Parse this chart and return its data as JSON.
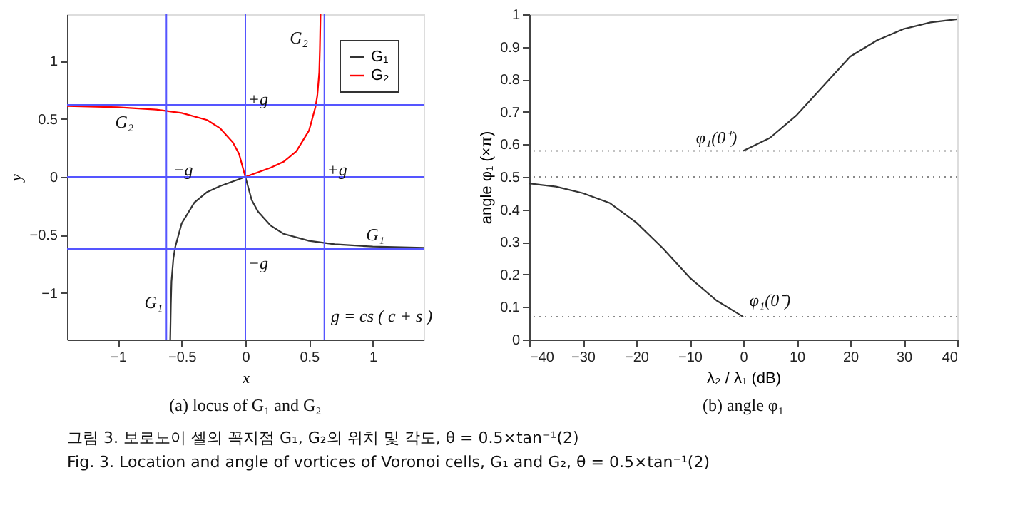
{
  "chart_data": [
    {
      "type": "line",
      "xlabel": "x",
      "ylabel": "y",
      "xlim": [
        -1.4,
        1.4
      ],
      "ylim": [
        -1.4,
        1.4
      ],
      "xticks": [
        -1,
        -0.5,
        0,
        0.5,
        1
      ],
      "yticks": [
        -1,
        -0.5,
        0,
        0.5,
        1
      ],
      "grid": false,
      "legend": "top right",
      "line_style": "solid",
      "series": [
        {
          "name": "G₁",
          "color": "#333333",
          "x": [
            -0.59,
            -0.585,
            -0.58,
            -0.565,
            -0.55,
            -0.5,
            -0.4,
            -0.3,
            -0.2,
            -0.1,
            0,
            0.02,
            0.05,
            0.1,
            0.2,
            0.3,
            0.5,
            0.7,
            1.0,
            1.4
          ],
          "values": [
            -1.4,
            -1.1,
            -0.9,
            -0.7,
            -0.6,
            -0.4,
            -0.22,
            -0.13,
            -0.08,
            -0.04,
            0,
            -0.08,
            -0.2,
            -0.3,
            -0.42,
            -0.49,
            -0.55,
            -0.58,
            -0.6,
            -0.61
          ]
        },
        {
          "name": "G₂",
          "color": "#ff0000",
          "x": [
            -1.4,
            -1.0,
            -0.7,
            -0.5,
            -0.3,
            -0.2,
            -0.1,
            -0.05,
            -0.02,
            0,
            0.1,
            0.2,
            0.3,
            0.4,
            0.5,
            0.55,
            0.565,
            0.58,
            0.585,
            0.59
          ],
          "values": [
            0.61,
            0.6,
            0.58,
            0.55,
            0.49,
            0.42,
            0.3,
            0.2,
            0.08,
            0,
            0.04,
            0.08,
            0.13,
            0.22,
            0.4,
            0.6,
            0.7,
            0.9,
            1.1,
            1.4
          ]
        }
      ],
      "ref_lines": [
        {
          "axis": "x",
          "value": -0.62,
          "color": "#5555ff",
          "line_style": "solid"
        },
        {
          "axis": "x",
          "value": 0,
          "color": "#5555ff",
          "line_style": "solid"
        },
        {
          "axis": "x",
          "value": 0.62,
          "color": "#5555ff",
          "line_style": "solid"
        },
        {
          "axis": "y",
          "value": -0.62,
          "color": "#5555ff",
          "line_style": "solid"
        },
        {
          "axis": "y",
          "value": 0,
          "color": "#5555ff",
          "line_style": "solid"
        },
        {
          "axis": "y",
          "value": 0.62,
          "color": "#5555ff",
          "line_style": "solid"
        }
      ],
      "annotations": [
        "(a) locus of G₁ and G₂",
        "그림 3. 보로노이 셀의 꼭지점 G₁, G₂의 위치 및 각도, θ = 0.5×tan⁻¹(2)",
        "Fig. 3. Location and angle of vortices of Voronoi cells, G₁ and G₂, θ = 0.5×tan⁻¹(2)",
        "G₂",
        "G₂",
        "G₁",
        "G₁",
        "+g",
        "−g",
        "+g",
        "−g",
        "g = cs ( c + s )"
      ]
    },
    {
      "type": "line",
      "xlabel": "λ₂ / λ₁ (dB)",
      "ylabel": "angle φ₁ (×π)",
      "xlim": [
        -40,
        40
      ],
      "ylim": [
        0,
        1
      ],
      "xticks": [
        -40,
        -30,
        -20,
        -10,
        0,
        10,
        20,
        30,
        40
      ],
      "yticks": [
        0,
        0.1,
        0.2,
        0.3,
        0.4,
        0.5,
        0.6,
        0.7,
        0.8,
        0.9,
        1
      ],
      "grid": false,
      "line_style": "solid",
      "series": [
        {
          "color": "#333333",
          "x": [
            -40,
            -35,
            -30,
            -25,
            -20,
            -15,
            -10,
            -5,
            0
          ],
          "values": [
            0.48,
            0.47,
            0.45,
            0.42,
            0.36,
            0.28,
            0.19,
            0.12,
            0.07
          ]
        },
        {
          "color": "#333333",
          "x": [
            0,
            5,
            10,
            15,
            20,
            25,
            30,
            35,
            40
          ],
          "values": [
            0.58,
            0.62,
            0.69,
            0.78,
            0.87,
            0.92,
            0.955,
            0.975,
            0.985
          ]
        }
      ],
      "ref_lines": [
        {
          "axis": "y",
          "value": 0.5,
          "color": "#888888",
          "line_style": "dotted"
        },
        {
          "axis": "y",
          "value": 0.58,
          "color": "#888888",
          "line_style": "dotted"
        },
        {
          "axis": "y",
          "value": 0.07,
          "color": "#888888",
          "line_style": "dotted"
        }
      ],
      "annotations": [
        "(b) angle φ₁",
        "φ₁(0⁺)",
        "φ₁(0⁻)"
      ]
    }
  ]
}
